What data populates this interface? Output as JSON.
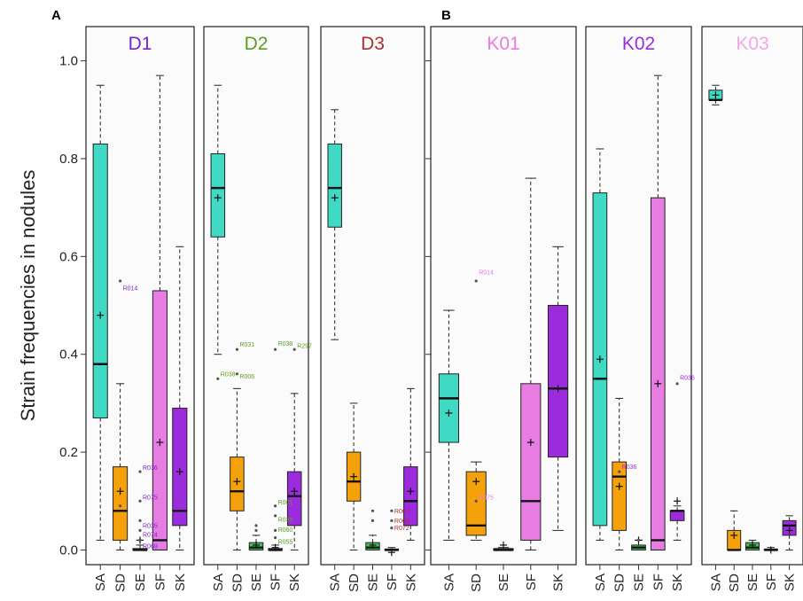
{
  "chart_data": {
    "type": "box",
    "ylabel": "Strain frequencies in nodules",
    "ylim": [
      -0.03,
      1.07
    ],
    "yticks": [
      "0.0",
      "0.2",
      "0.4",
      "0.6",
      "0.8",
      "1.0"
    ],
    "ytick_values": [
      0.0,
      0.2,
      0.4,
      0.6,
      0.8,
      1.0
    ],
    "categories": [
      "SA",
      "SD",
      "SE",
      "SF",
      "SK"
    ],
    "category_colors": {
      "SA": "#3fd9c4",
      "SD": "#f5a10c",
      "SE": "#3ec45a",
      "SF": "#e77ce2",
      "SK": "#9c2bde"
    },
    "groups": [
      {
        "label": "A",
        "panels": [
          0,
          1,
          2
        ]
      },
      {
        "label": "B",
        "panels": [
          3,
          4,
          5
        ]
      }
    ],
    "panels": [
      {
        "title": "D1",
        "title_color": "#7a25c9",
        "boxes": [
          {
            "cat": "SA",
            "whislo": 0.02,
            "q1": 0.27,
            "med": 0.38,
            "q3": 0.83,
            "whishi": 0.95,
            "mean": 0.48
          },
          {
            "cat": "SD",
            "whislo": 0.0,
            "q1": 0.02,
            "med": 0.08,
            "q3": 0.17,
            "whishi": 0.34,
            "mean": 0.12
          },
          {
            "cat": "SE",
            "whislo": 0.0,
            "q1": 0.0,
            "med": 0.0,
            "q3": 0.003,
            "whishi": 0.01,
            "mean": 0.02
          },
          {
            "cat": "SF",
            "whislo": 0.0,
            "q1": 0.0,
            "med": 0.02,
            "q3": 0.53,
            "whishi": 0.97,
            "mean": 0.22
          },
          {
            "cat": "SK",
            "whislo": 0.0,
            "q1": 0.05,
            "med": 0.08,
            "q3": 0.29,
            "whishi": 0.62,
            "mean": 0.16
          }
        ],
        "outliers": [
          {
            "cat": "SD",
            "value": 0.55,
            "label": "R014",
            "label_dy": -0.015
          },
          {
            "cat": "SD",
            "value": 0.09,
            "label": "",
            "label_dy": 0
          },
          {
            "cat": "SE",
            "value": 0.16,
            "label": "R036",
            "label_dy": 0.008
          },
          {
            "cat": "SE",
            "value": 0.1,
            "label": "R075",
            "label_dy": 0.008
          },
          {
            "cat": "SE",
            "value": 0.06,
            "label": "R035",
            "label_dy": -0.01
          },
          {
            "cat": "SE",
            "value": 0.04,
            "label": "R074",
            "label_dy": -0.008
          },
          {
            "cat": "SE",
            "value": 0.02,
            "label": "R069",
            "label_dy": -0.012
          }
        ]
      },
      {
        "title": "D2",
        "title_color": "#5a9e1e",
        "boxes": [
          {
            "cat": "SA",
            "whislo": 0.4,
            "q1": 0.64,
            "med": 0.74,
            "q3": 0.81,
            "whishi": 0.95,
            "mean": 0.72
          },
          {
            "cat": "SD",
            "whislo": 0.0,
            "q1": 0.08,
            "med": 0.12,
            "q3": 0.19,
            "whishi": 0.33,
            "mean": 0.14
          },
          {
            "cat": "SE",
            "whislo": 0.0,
            "q1": 0.0,
            "med": 0.005,
            "q3": 0.015,
            "whishi": 0.03,
            "mean": 0.01
          },
          {
            "cat": "SF",
            "whislo": 0.0,
            "q1": 0.0,
            "med": 0.0,
            "q3": 0.003,
            "whishi": 0.01,
            "mean": 0.005
          },
          {
            "cat": "SK",
            "whislo": 0.0,
            "q1": 0.05,
            "med": 0.11,
            "q3": 0.16,
            "whishi": 0.32,
            "mean": 0.12
          }
        ],
        "outliers": [
          {
            "cat": "SA",
            "value": 0.35,
            "label": "R038",
            "label_dy": 0.01
          },
          {
            "cat": "SD",
            "value": 0.41,
            "label": "R031",
            "label_dy": 0.01
          },
          {
            "cat": "SD",
            "value": 0.36,
            "label": "R006",
            "label_dy": -0.005
          },
          {
            "cat": "SE",
            "value": 0.04,
            "label": "",
            "label_dy": 0
          },
          {
            "cat": "SE",
            "value": 0.05,
            "label": "",
            "label_dy": 0
          },
          {
            "cat": "SF",
            "value": 0.09,
            "label": "R001",
            "label_dy": 0.008
          },
          {
            "cat": "SF",
            "value": 0.07,
            "label": "R039",
            "label_dy": -0.008
          },
          {
            "cat": "SF",
            "value": 0.04,
            "label": "R060",
            "label_dy": 0.002
          },
          {
            "cat": "SF",
            "value": 0.025,
            "label": "R055",
            "label_dy": -0.008
          },
          {
            "cat": "SF",
            "value": 0.41,
            "label": "R038",
            "label_dy": 0.012
          },
          {
            "cat": "SK",
            "value": 0.41,
            "label": "R297",
            "label_dy": 0.008
          }
        ]
      },
      {
        "title": "D3",
        "title_color": "#b03030",
        "boxes": [
          {
            "cat": "SA",
            "whislo": 0.43,
            "q1": 0.66,
            "med": 0.74,
            "q3": 0.83,
            "whishi": 0.9,
            "mean": 0.72
          },
          {
            "cat": "SD",
            "whislo": 0.0,
            "q1": 0.1,
            "med": 0.14,
            "q3": 0.2,
            "whishi": 0.3,
            "mean": 0.15
          },
          {
            "cat": "SE",
            "whislo": 0.0,
            "q1": 0.0,
            "med": 0.005,
            "q3": 0.015,
            "whishi": 0.03,
            "mean": 0.01
          },
          {
            "cat": "SF",
            "whislo": 0.0,
            "q1": 0.0,
            "med": 0.0,
            "q3": 0.002,
            "whishi": 0.005,
            "mean": -0.005
          },
          {
            "cat": "SK",
            "whislo": 0.02,
            "q1": 0.05,
            "med": 0.1,
            "q3": 0.17,
            "whishi": 0.33,
            "mean": 0.12
          }
        ],
        "outliers": [
          {
            "cat": "SE",
            "value": 0.08,
            "label": "",
            "label_dy": 0
          },
          {
            "cat": "SE",
            "value": 0.06,
            "label": "",
            "label_dy": 0
          },
          {
            "cat": "SF",
            "value": 0.08,
            "label": "R067",
            "label_dy": 0.0
          },
          {
            "cat": "SF",
            "value": 0.06,
            "label": "R068",
            "label_dy": 0.0
          },
          {
            "cat": "SF",
            "value": 0.045,
            "label": "R072",
            "label_dy": 0.0
          }
        ]
      },
      {
        "title": "K01",
        "title_color": "#e77ce2",
        "boxes": [
          {
            "cat": "SA",
            "whislo": 0.02,
            "q1": 0.22,
            "med": 0.31,
            "q3": 0.36,
            "whishi": 0.49,
            "mean": 0.28
          },
          {
            "cat": "SD",
            "whislo": 0.02,
            "q1": 0.03,
            "med": 0.05,
            "q3": 0.16,
            "whishi": 0.18,
            "mean": 0.14
          },
          {
            "cat": "SE",
            "whislo": 0.0,
            "q1": 0.0,
            "med": 0.0,
            "q3": 0.003,
            "whishi": 0.005,
            "mean": 0.01
          },
          {
            "cat": "SF",
            "whislo": 0.0,
            "q1": 0.02,
            "med": 0.1,
            "q3": 0.34,
            "whishi": 0.76,
            "mean": 0.22
          },
          {
            "cat": "SK",
            "whislo": 0.04,
            "q1": 0.19,
            "med": 0.33,
            "q3": 0.5,
            "whishi": 0.62,
            "mean": 0.33
          }
        ],
        "outliers": [
          {
            "cat": "SD",
            "value": 0.55,
            "label": "R014",
            "label_dy": 0.018
          },
          {
            "cat": "SD",
            "value": 0.1,
            "label": "R075",
            "label_dy": 0.008
          }
        ]
      },
      {
        "title": "K02",
        "title_color": "#9c2bde",
        "boxes": [
          {
            "cat": "SA",
            "whislo": 0.02,
            "q1": 0.05,
            "med": 0.35,
            "q3": 0.73,
            "whishi": 0.82,
            "mean": 0.39
          },
          {
            "cat": "SD",
            "whislo": 0.0,
            "q1": 0.04,
            "med": 0.15,
            "q3": 0.18,
            "whishi": 0.31,
            "mean": 0.13
          },
          {
            "cat": "SE",
            "whislo": 0.0,
            "q1": 0.0,
            "med": 0.005,
            "q3": 0.01,
            "whishi": 0.02,
            "mean": 0.02
          },
          {
            "cat": "SF",
            "whislo": 0.0,
            "q1": 0.0,
            "med": 0.02,
            "q3": 0.72,
            "whishi": 0.97,
            "mean": 0.34
          },
          {
            "cat": "SK",
            "whislo": 0.02,
            "q1": 0.06,
            "med": 0.08,
            "q3": 0.08,
            "whishi": 0.09,
            "mean": 0.1
          }
        ],
        "outliers": [
          {
            "cat": "SD",
            "value": 0.16,
            "label": "R036",
            "label_dy": 0.01
          },
          {
            "cat": "SE",
            "value": 0.02,
            "label": "",
            "label_dy": 0
          },
          {
            "cat": "SK",
            "value": 0.34,
            "label": "R036",
            "label_dy": 0.012
          }
        ]
      },
      {
        "title": "K03",
        "title_color": "#f0a8e6",
        "boxes": [
          {
            "cat": "SA",
            "whislo": 0.91,
            "q1": 0.92,
            "med": 0.92,
            "q3": 0.94,
            "whishi": 0.95,
            "mean": 0.93
          },
          {
            "cat": "SD",
            "whislo": 0.0,
            "q1": 0.0,
            "med": 0.0,
            "q3": 0.04,
            "whishi": 0.08,
            "mean": 0.03
          },
          {
            "cat": "SE",
            "whislo": 0.0,
            "q1": 0.0,
            "med": 0.005,
            "q3": 0.015,
            "whishi": 0.02,
            "mean": 0.01
          },
          {
            "cat": "SF",
            "whislo": 0.0,
            "q1": 0.0,
            "med": 0.0,
            "q3": 0.002,
            "whishi": 0.005,
            "mean": 0.0
          },
          {
            "cat": "SK",
            "whislo": 0.0,
            "q1": 0.03,
            "med": 0.05,
            "q3": 0.06,
            "whishi": 0.07,
            "mean": 0.04
          }
        ],
        "outliers": []
      }
    ]
  }
}
